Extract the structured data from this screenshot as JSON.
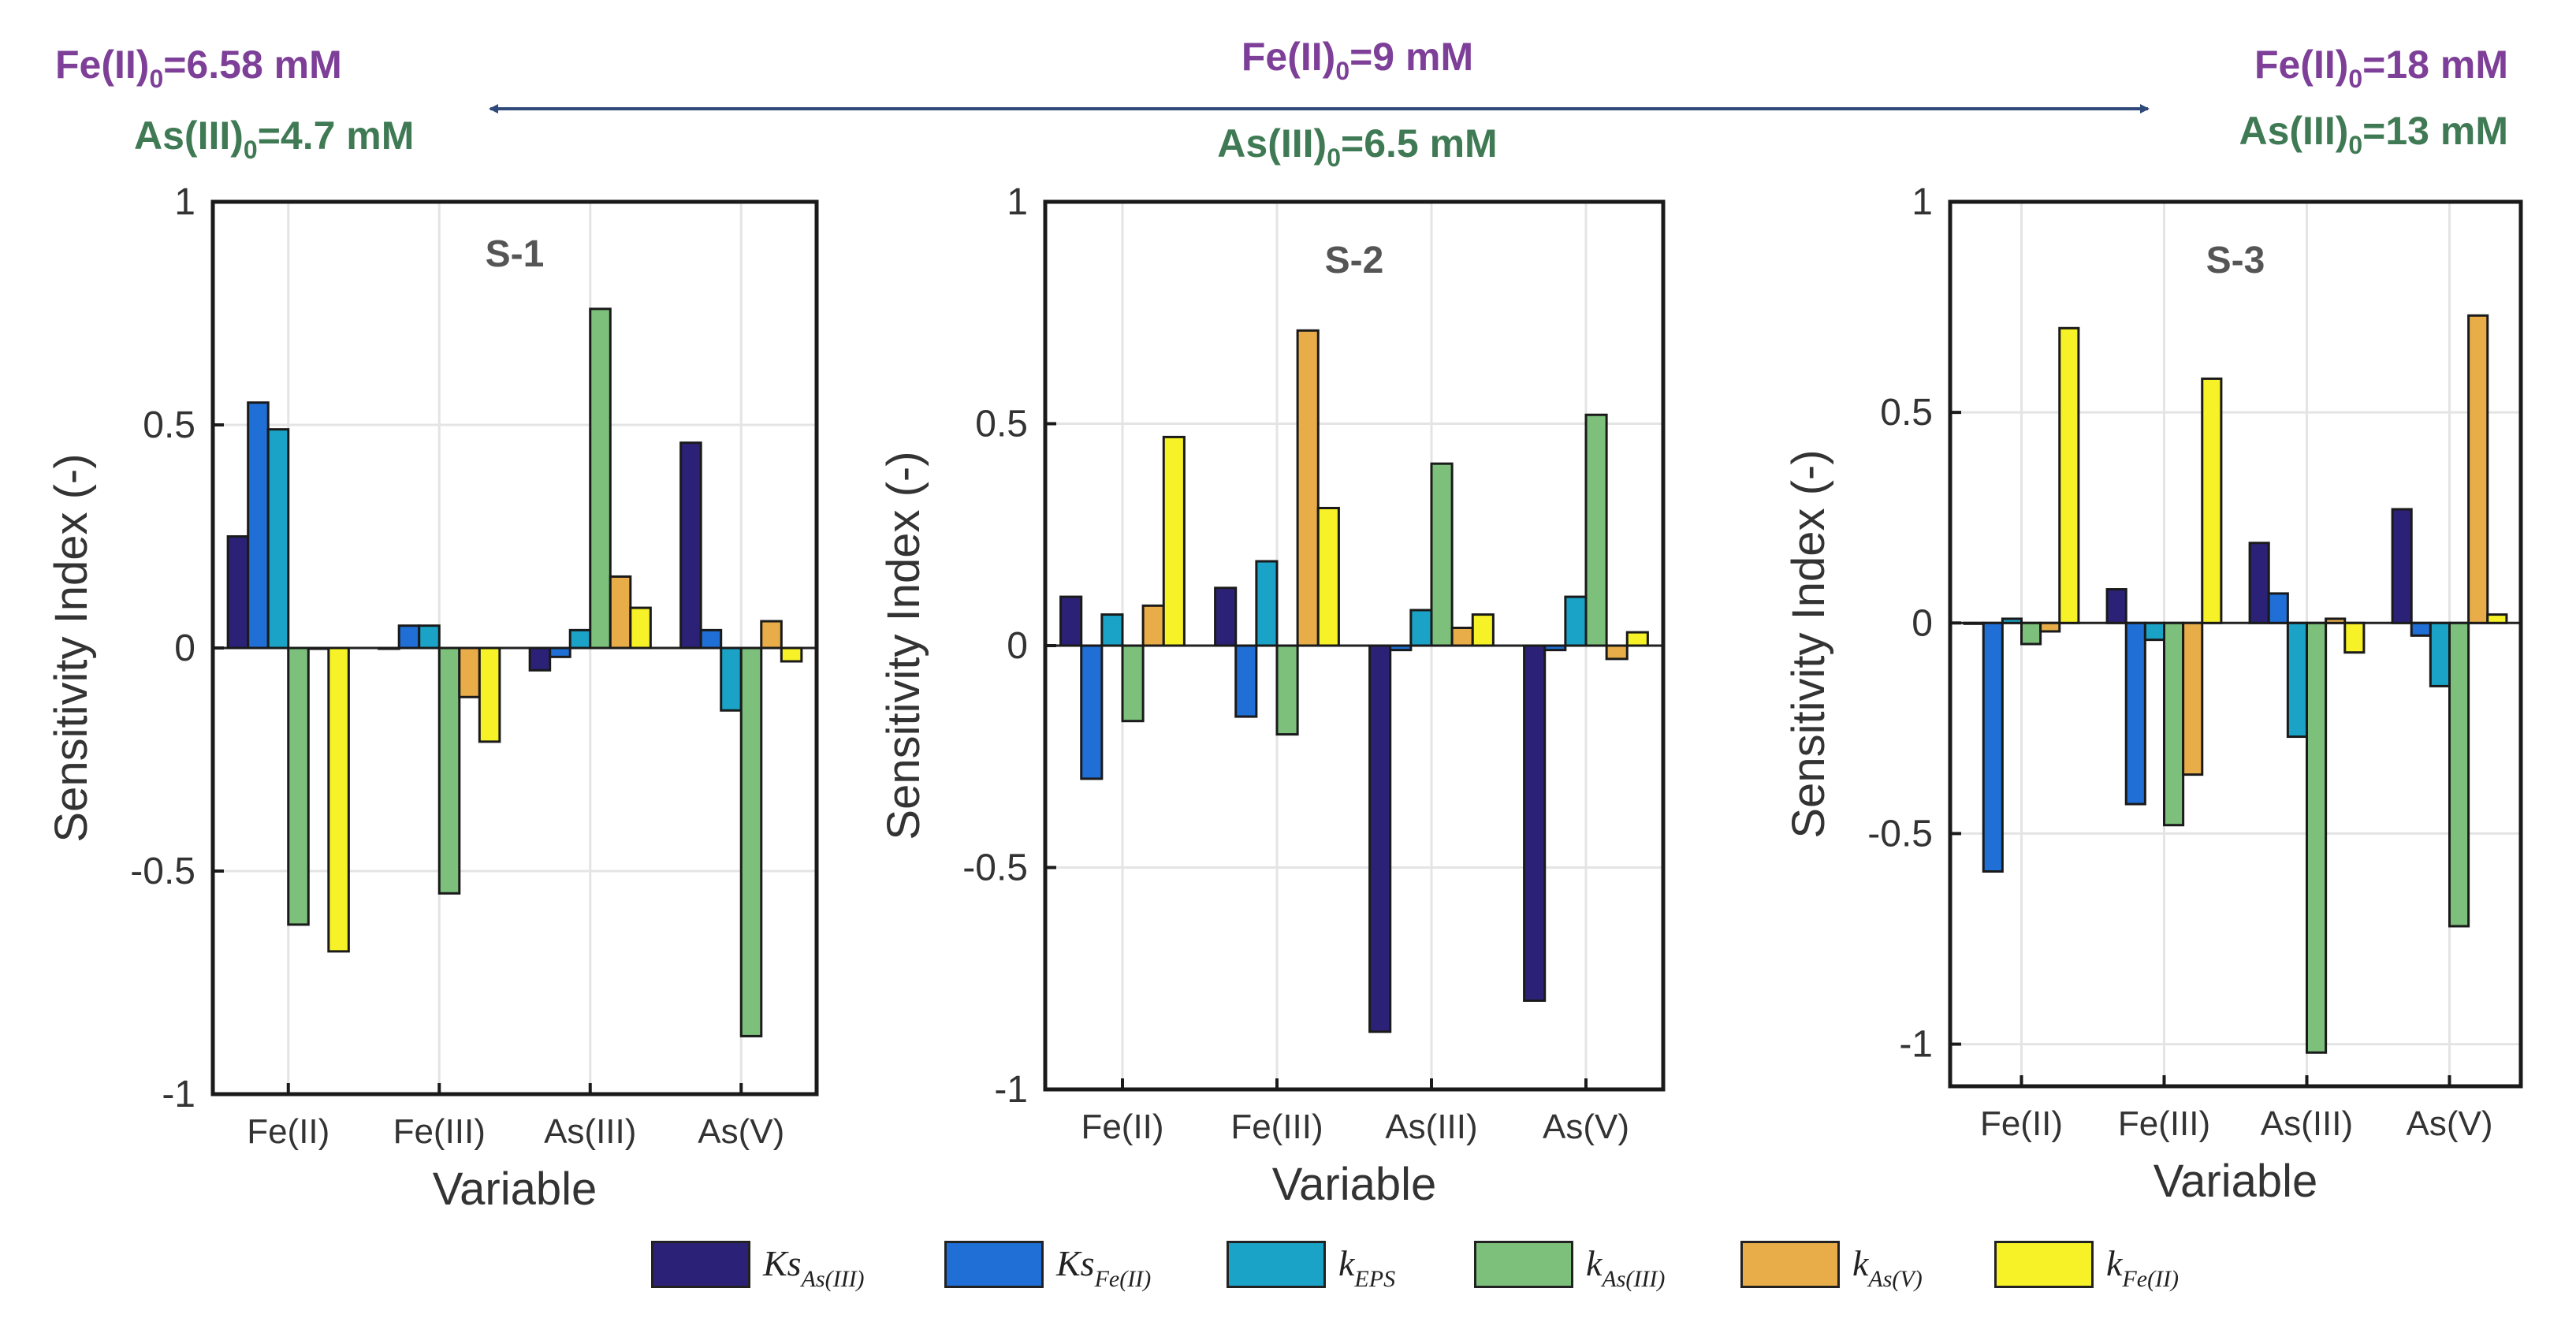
{
  "header": {
    "left_fe": "Fe(II)",
    "left_fe_sub": "0",
    "left_fe_val": "=6.58 mM",
    "left_as": "As(III)",
    "left_as_sub": "0",
    "left_as_val": "=4.7 mM",
    "mid_fe": "Fe(II)",
    "mid_fe_sub": "0",
    "mid_fe_val": "=9 mM",
    "mid_as": "As(III)",
    "mid_as_sub": "0",
    "mid_as_val": "=6.5 mM",
    "right_fe": "Fe(II)",
    "right_fe_sub": "0",
    "right_fe_val": "=18 mM",
    "right_as": "As(III)",
    "right_as_sub": "0",
    "right_as_val": "=13 mM",
    "colors": {
      "fe": "#7d3f98",
      "as": "#3f7a55",
      "arrow": "#2f4a7a"
    }
  },
  "legend": [
    {
      "main": "Ks",
      "sub": "As(III)",
      "color": "#2b2277"
    },
    {
      "main": "Ks",
      "sub": "Fe(II)",
      "color": "#1f6fd6"
    },
    {
      "main": "k",
      "sub": "EPS",
      "color": "#1aa3c6"
    },
    {
      "main": "k",
      "sub": "As(III)",
      "color": "#7cc07c"
    },
    {
      "main": "k",
      "sub": "As(V)",
      "color": "#e8ad48"
    },
    {
      "main": "k",
      "sub": "Fe(II)",
      "color": "#f7f227"
    }
  ],
  "chart_data": [
    {
      "type": "bar",
      "title": "S-1",
      "xlabel": "Variable",
      "ylabel": "Sensitivity Index (-)",
      "categories": [
        "Fe(II)",
        "Fe(III)",
        "As(III)",
        "As(V)"
      ],
      "ylim": [
        -1,
        1
      ],
      "yticks": [
        -1,
        -0.5,
        0,
        0.5,
        1
      ],
      "ytick_labels": [
        "-1",
        "-0.5",
        "0",
        "0.5",
        "1"
      ],
      "grid": true,
      "series": [
        {
          "name": "Ks_As(III)",
          "values": [
            0.25,
            0.0,
            -0.05,
            0.46
          ]
        },
        {
          "name": "Ks_Fe(II)",
          "values": [
            0.55,
            0.05,
            -0.02,
            0.04
          ]
        },
        {
          "name": "k_EPS",
          "values": [
            0.49,
            0.05,
            0.04,
            -0.14
          ]
        },
        {
          "name": "k_As(III)",
          "values": [
            -0.62,
            -0.55,
            0.76,
            -0.87
          ]
        },
        {
          "name": "k_As(V)",
          "values": [
            0.0,
            -0.11,
            0.16,
            0.06
          ]
        },
        {
          "name": "k_Fe(II)",
          "values": [
            -0.68,
            -0.21,
            0.09,
            -0.03
          ]
        }
      ]
    },
    {
      "type": "bar",
      "title": "S-2",
      "xlabel": "Variable",
      "ylabel": "Sensitivity Index (-)",
      "categories": [
        "Fe(II)",
        "Fe(III)",
        "As(III)",
        "As(V)"
      ],
      "ylim": [
        -1,
        1
      ],
      "yticks": [
        -1,
        -0.5,
        0,
        0.5,
        1
      ],
      "ytick_labels": [
        "-1",
        "-0.5",
        "0",
        "0.5",
        "1"
      ],
      "grid": true,
      "series": [
        {
          "name": "Ks_As(III)",
          "values": [
            0.11,
            0.13,
            -0.87,
            -0.8
          ]
        },
        {
          "name": "Ks_Fe(II)",
          "values": [
            -0.3,
            -0.16,
            -0.01,
            -0.01
          ]
        },
        {
          "name": "k_EPS",
          "values": [
            0.07,
            0.19,
            0.08,
            0.11
          ]
        },
        {
          "name": "k_As(III)",
          "values": [
            -0.17,
            -0.2,
            0.41,
            0.52
          ]
        },
        {
          "name": "k_As(V)",
          "values": [
            0.09,
            0.71,
            0.04,
            -0.03
          ]
        },
        {
          "name": "k_Fe(II)",
          "values": [
            0.47,
            0.31,
            0.07,
            0.03
          ]
        }
      ]
    },
    {
      "type": "bar",
      "title": "S-3",
      "xlabel": "Variable",
      "ylabel": "Sensitivity Index (-)",
      "categories": [
        "Fe(II)",
        "Fe(III)",
        "As(III)",
        "As(V)"
      ],
      "ylim": [
        -1.1,
        1
      ],
      "yticks": [
        -1,
        -0.5,
        0,
        0.5,
        1
      ],
      "ytick_labels": [
        "-1",
        "-0.5",
        "0",
        "0.5",
        "1"
      ],
      "grid": true,
      "series": [
        {
          "name": "Ks_As(III)",
          "values": [
            0.0,
            0.08,
            0.19,
            0.27
          ]
        },
        {
          "name": "Ks_Fe(II)",
          "values": [
            -0.59,
            -0.43,
            0.07,
            -0.03
          ]
        },
        {
          "name": "k_EPS",
          "values": [
            0.01,
            -0.04,
            -0.27,
            -0.15
          ]
        },
        {
          "name": "k_As(III)",
          "values": [
            -0.05,
            -0.48,
            -1.02,
            -0.72
          ]
        },
        {
          "name": "k_As(V)",
          "values": [
            -0.02,
            -0.36,
            0.01,
            0.73
          ]
        },
        {
          "name": "k_Fe(II)",
          "values": [
            0.7,
            0.58,
            -0.07,
            0.02
          ]
        }
      ]
    }
  ]
}
